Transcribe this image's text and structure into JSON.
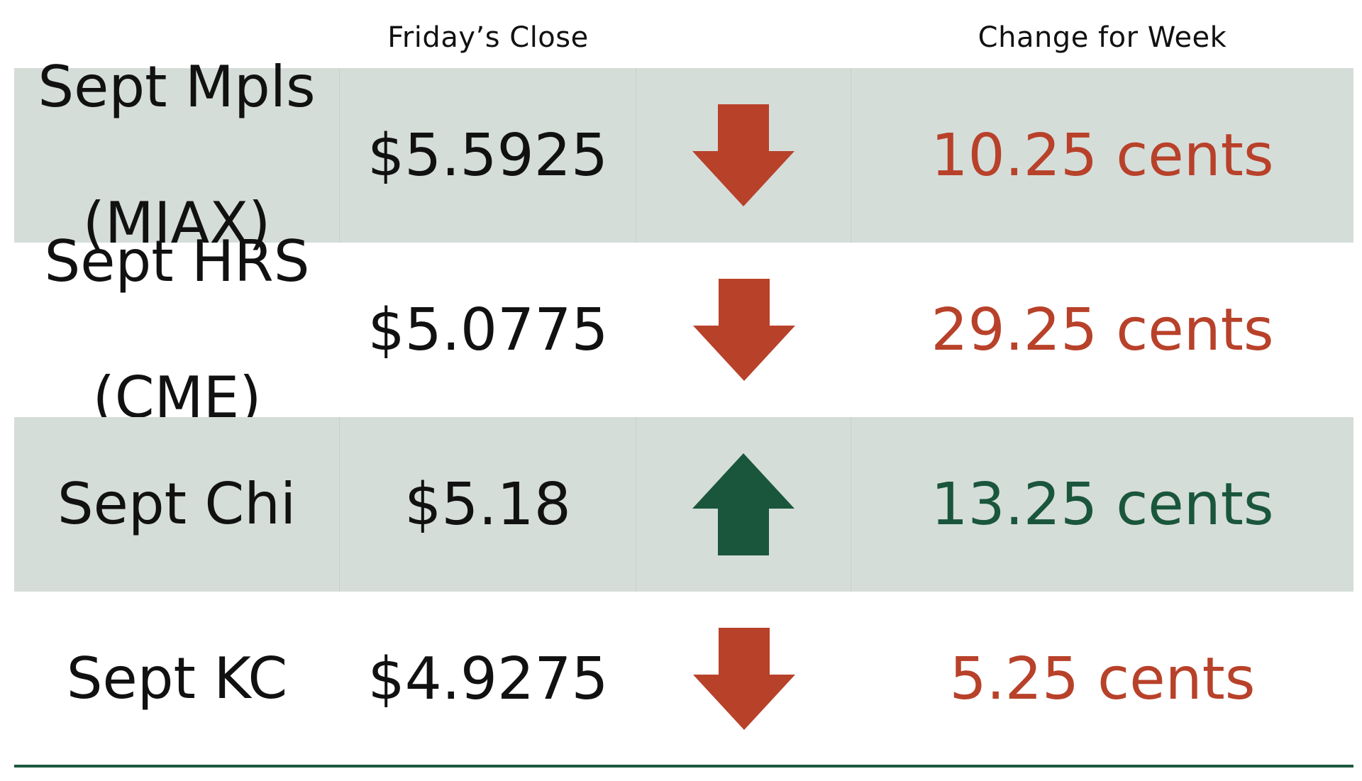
{
  "headers": {
    "close": "Friday’s Close",
    "change": "Change for Week"
  },
  "colors": {
    "down": "#b8412a",
    "up": "#1a563c",
    "shade": "#d5ddd9",
    "rule": "#1b5a3f"
  },
  "rows": [
    {
      "name_line1": "Sept Mpls",
      "name_line2": "(MIAX)",
      "close": "$5.5925",
      "direction": "down",
      "direction_icon": "arrow-down-icon",
      "change": "10.25 cents"
    },
    {
      "name_line1": "Sept HRS",
      "name_line2": "(CME)",
      "close": "$5.0775",
      "direction": "down",
      "direction_icon": "arrow-down-icon",
      "change": "29.25 cents"
    },
    {
      "name_line1": "Sept Chi",
      "name_line2": "",
      "close": "$5.18",
      "direction": "up",
      "direction_icon": "arrow-up-icon",
      "change": "13.25 cents"
    },
    {
      "name_line1": "Sept KC",
      "name_line2": "",
      "close": "$4.9275",
      "direction": "down",
      "direction_icon": "arrow-down-icon",
      "change": "5.25 cents"
    }
  ]
}
